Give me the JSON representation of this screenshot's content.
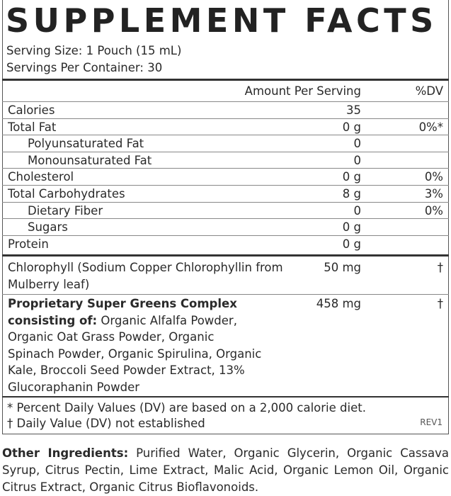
{
  "title": "SUPPLEMENT FACTS",
  "serving_size": "Serving Size: 1 Pouch (15 mL)",
  "servings_per_container": "Servings Per Container: 30",
  "header": {
    "amount": "Amount Per Serving",
    "dv": "%DV"
  },
  "rows": [
    {
      "name": "Calories",
      "amount": "35",
      "dv": ""
    },
    {
      "name": "Total Fat",
      "amount": "0 g",
      "dv": "0%*"
    },
    {
      "name": "Polyunsaturated Fat",
      "amount": "0",
      "dv": ""
    },
    {
      "name": "Monounsaturated Fat",
      "amount": "0",
      "dv": ""
    },
    {
      "name": "Cholesterol",
      "amount": "0 g",
      "dv": "0%"
    },
    {
      "name": "Total Carbohydrates",
      "amount": "8 g",
      "dv": "3%"
    },
    {
      "name": "Dietary Fiber",
      "amount": "0",
      "dv": "0%"
    },
    {
      "name": "Sugars",
      "amount": "0 g",
      "dv": ""
    },
    {
      "name": "Protein",
      "amount": "0 g",
      "dv": ""
    }
  ],
  "chlorophyll": {
    "name": "Chlorophyll (Sodium Copper Chlorophyllin from Mulberry leaf)",
    "amount": "50 mg",
    "dv": "†"
  },
  "blend": {
    "name_bold": "Proprietary Super Greens Complex consisting of:",
    "ingredients": " Organic Alfalfa Powder, Organic Oat Grass Powder, Organic Spinach Powder, Organic Spirulina, Organic Kale, Broccoli Seed Powder Extract, 13% Glucoraphanin Powder",
    "amount": "458 mg",
    "dv": "†"
  },
  "footnotes": [
    "* Percent Daily Values (DV) are based on a 2,000 calorie diet.",
    "† Daily Value (DV) not established"
  ],
  "revision": "REV1",
  "other_ingredients": {
    "label": "Other Ingredients:",
    "text": " Purified Water, Organic Glycerin, Organic Cassava Syrup, Citrus Pectin, Lime Extract, Malic Acid, Organic Lemon Oil, Organic Citrus Extract, Organic Citrus Bioflavonoids."
  }
}
